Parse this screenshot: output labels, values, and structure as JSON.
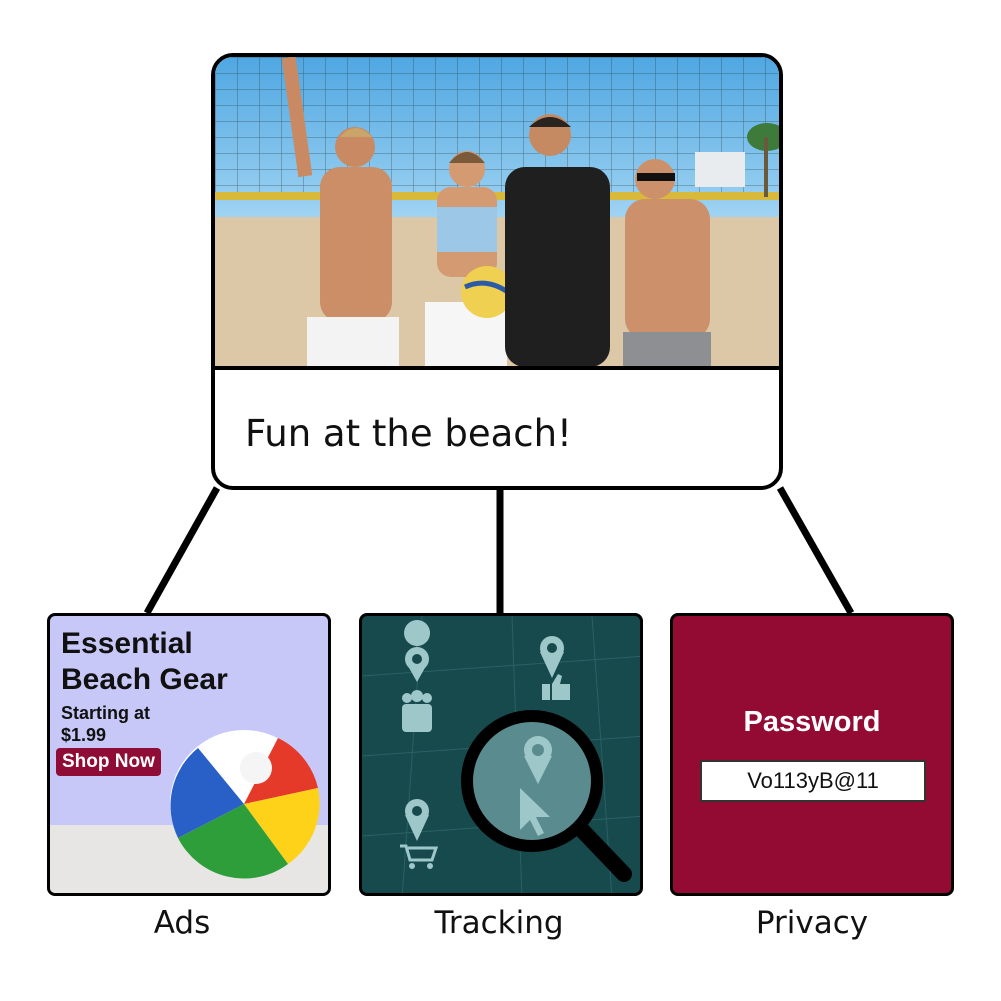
{
  "post": {
    "caption": "Fun at the beach!",
    "photo": "beach-volleyball-group-photo"
  },
  "ads": {
    "title_line1": "Essential",
    "title_line2": "Beach Gear",
    "sub_line1": "Starting at",
    "sub_line2": "$1.99",
    "button": "Shop Now",
    "label": "Ads",
    "button_color": "#8f0c36",
    "background": "#c8c8f8"
  },
  "tracking": {
    "label": "Tracking",
    "background": "#174a4d",
    "icons": [
      "location-people-icon",
      "location-thumbs-up-icon",
      "location-cart-icon",
      "magnifier-cursor-icon"
    ]
  },
  "privacy": {
    "title": "Password",
    "password_value": "Vo113yB@11",
    "label": "Privacy",
    "background": "#930a33"
  }
}
